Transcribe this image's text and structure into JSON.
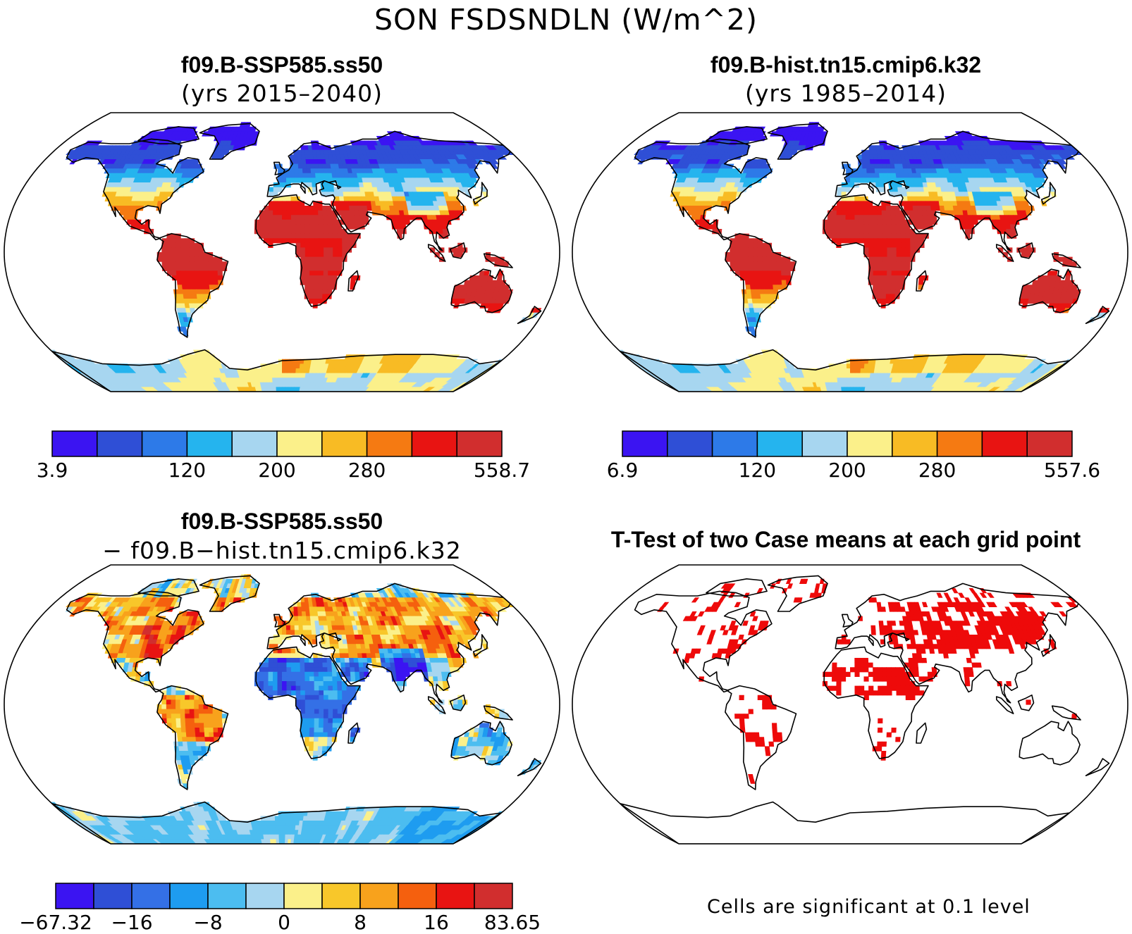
{
  "figure": {
    "title": "SON FSDSNDLN (W/m^2)"
  },
  "panels": [
    {
      "id": "case1",
      "title": "f09.B-SSP585.ss50",
      "subtitle": "(yrs 2015–2040)",
      "field": "case",
      "colorbar": {
        "colors": [
          "#3b14f2",
          "#2f4fd6",
          "#2d7ae8",
          "#25b4ee",
          "#a7d6f0",
          "#fbf08a",
          "#f8bb24",
          "#f57a12",
          "#e81412",
          "#d12e2e"
        ],
        "tick_labels": [
          "3.9",
          "120",
          "200",
          "280",
          "558.7"
        ],
        "tick_boundaries": [
          0,
          3,
          5,
          7,
          10
        ]
      }
    },
    {
      "id": "case2",
      "title": "f09.B-hist.tn15.cmip6.k32",
      "subtitle": "(yrs 1985–2014)",
      "field": "case",
      "colorbar": {
        "colors": [
          "#3b14f2",
          "#2f4fd6",
          "#2d7ae8",
          "#25b4ee",
          "#a7d6f0",
          "#fbf08a",
          "#f8bb24",
          "#f57a12",
          "#e81412",
          "#d12e2e"
        ],
        "tick_labels": [
          "6.9",
          "120",
          "200",
          "280",
          "557.6"
        ],
        "tick_boundaries": [
          0,
          3,
          5,
          7,
          10
        ]
      }
    },
    {
      "id": "diff",
      "title": "f09.B-SSP585.ss50",
      "subtitle": "− f09.B−hist.tn15.cmip6.k32",
      "field": "diff",
      "colorbar": {
        "colors": [
          "#3b14f2",
          "#2f4fd6",
          "#3470e6",
          "#1e9cf0",
          "#4cbdf0",
          "#a7d6f0",
          "#fbf08a",
          "#f8c72a",
          "#f8a21c",
          "#f5600e",
          "#e81412",
          "#d12e2e"
        ],
        "tick_labels": [
          "−67.32",
          "−16",
          "−8",
          "0",
          "8",
          "16",
          "83.65"
        ],
        "tick_boundaries": [
          0,
          2,
          4,
          6,
          8,
          10,
          12
        ]
      }
    },
    {
      "id": "ttest",
      "title": "T-Test of two Case means at each grid point",
      "subtitle": "",
      "field": "sig",
      "note": "Cells are significant at 0.1 level"
    }
  ],
  "chart_data": [
    {
      "type": "heatmap",
      "title": "f09.B-SSP585.ss50 (yrs 2015–2040)",
      "projection": "Robinson",
      "units": "W/m^2",
      "value_range": [
        3.9,
        558.7
      ],
      "colorbar_ticks": [
        "3.9",
        "120",
        "200",
        "280",
        "558.7"
      ]
    },
    {
      "type": "heatmap",
      "title": "f09.B-hist.tn15.cmip6.k32 (yrs 1985–2014)",
      "projection": "Robinson",
      "units": "W/m^2",
      "value_range": [
        6.9,
        557.6
      ],
      "colorbar_ticks": [
        "6.9",
        "120",
        "200",
        "280",
        "557.6"
      ]
    },
    {
      "type": "heatmap",
      "title": "f09.B-SSP585.ss50 − f09.B−hist.tn15.cmip6.k32",
      "projection": "Robinson",
      "units": "W/m^2",
      "value_range": [
        -67.32,
        83.65
      ],
      "colorbar_ticks": [
        "−67.32",
        "−16",
        "−8",
        "0",
        "8",
        "16",
        "83.65"
      ]
    },
    {
      "type": "heatmap",
      "title": "T-Test of two Case means at each grid point",
      "projection": "Robinson",
      "significance_level": 0.1,
      "significant_color": "#e81412"
    }
  ]
}
